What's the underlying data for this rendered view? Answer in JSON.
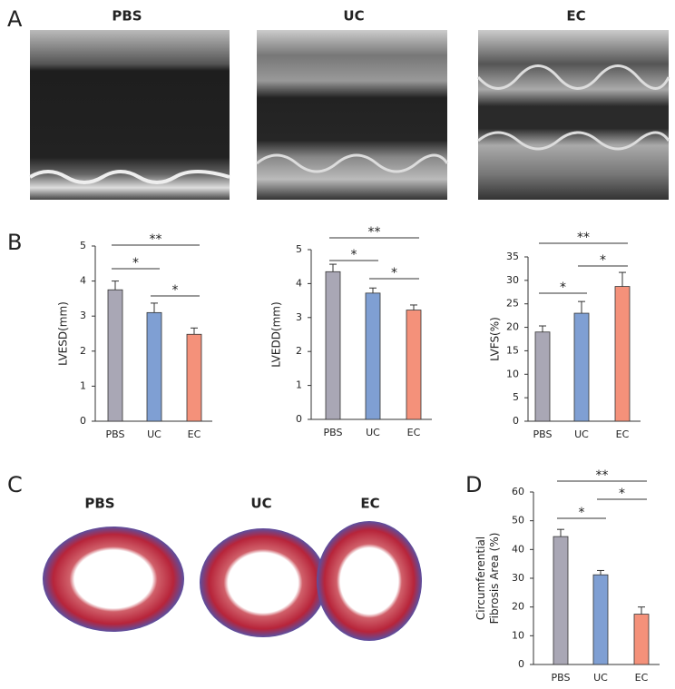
{
  "figure": {
    "panel_labels": [
      "A",
      "B",
      "C",
      "D"
    ],
    "echo_labels": [
      "PBS",
      "UC",
      "EC"
    ],
    "histology_labels": [
      "PBS",
      "UC",
      "EC"
    ]
  },
  "chart_data": [
    {
      "type": "bar",
      "ylabel": [
        "LVESD(mm)"
      ],
      "categories": [
        "PBS",
        "UC",
        "EC"
      ],
      "values": [
        3.75,
        3.1,
        2.48
      ],
      "errors": [
        0.25,
        0.27,
        0.18
      ],
      "colors": [
        "#a9a7b5",
        "#7f9fd3",
        "#f4917a"
      ],
      "ylim": [
        0,
        5
      ],
      "yticks": [
        0,
        1,
        2,
        3,
        4,
        5
      ],
      "significance": [
        {
          "from": 0,
          "to": 2,
          "label": "**"
        },
        {
          "from": 0,
          "to": 1,
          "label": "*"
        },
        {
          "from": 1,
          "to": 2,
          "label": "*"
        }
      ]
    },
    {
      "type": "bar",
      "ylabel": [
        "LVEDD(mm)"
      ],
      "categories": [
        "PBS",
        "UC",
        "EC"
      ],
      "values": [
        4.35,
        3.72,
        3.22
      ],
      "errors": [
        0.22,
        0.15,
        0.15
      ],
      "colors": [
        "#a9a7b5",
        "#7f9fd3",
        "#f4917a"
      ],
      "ylim": [
        0,
        5
      ],
      "yticks": [
        0,
        1,
        2,
        3,
        4,
        5
      ],
      "significance": [
        {
          "from": 0,
          "to": 2,
          "label": "**"
        },
        {
          "from": 0,
          "to": 1,
          "label": "*"
        },
        {
          "from": 1,
          "to": 2,
          "label": "*"
        }
      ]
    },
    {
      "type": "bar",
      "ylabel": [
        "LVFS(%)"
      ],
      "categories": [
        "PBS",
        "UC",
        "EC"
      ],
      "values": [
        19,
        23,
        28.7
      ],
      "errors": [
        1.3,
        2.5,
        3
      ],
      "colors": [
        "#a9a7b5",
        "#7f9fd3",
        "#f4917a"
      ],
      "ylim": [
        0,
        35
      ],
      "yticks": [
        0,
        5,
        10,
        15,
        20,
        25,
        30,
        35
      ],
      "significance": [
        {
          "from": 0,
          "to": 2,
          "label": "**"
        },
        {
          "from": 1,
          "to": 2,
          "label": "*"
        },
        {
          "from": 0,
          "to": 1,
          "label": "*"
        }
      ]
    },
    {
      "type": "bar",
      "ylabel": [
        "Circumferential",
        "Fibrosis Area (%)"
      ],
      "categories": [
        "PBS",
        "UC",
        "EC"
      ],
      "values": [
        44.5,
        31.2,
        17.5
      ],
      "errors": [
        2.5,
        1.5,
        2.5
      ],
      "colors": [
        "#a9a7b5",
        "#7f9fd3",
        "#f4917a"
      ],
      "ylim": [
        0,
        60
      ],
      "yticks": [
        0,
        10,
        20,
        30,
        40,
        50,
        60
      ],
      "significance": [
        {
          "from": 0,
          "to": 2,
          "label": "**"
        },
        {
          "from": 1,
          "to": 2,
          "label": "*"
        },
        {
          "from": 0,
          "to": 1,
          "label": "*"
        }
      ]
    }
  ]
}
